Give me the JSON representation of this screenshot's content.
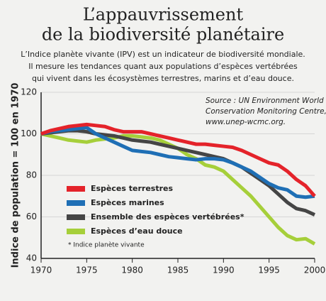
{
  "chart_data": {
    "type": "line",
    "title": [
      "L’appauvrissement",
      "de la biodiversité planétaire"
    ],
    "subtitle": [
      "L’Indice planète vivante (IPV) est un indicateur de biodiversité mondiale.",
      "Il mesure les tendances quant aux populations d’espèces vertébrées",
      "qui vivent dans les écosystèmes terrestres, marins et d’eau douce."
    ],
    "source": [
      "Source : UN Environment World",
      "Conservation Monitoring Centre,",
      "www.unep-wcmc.org."
    ],
    "y_label": "Indice de population = 100 en 1970",
    "footnote": "* Indice planète vivante",
    "x": [
      1970,
      1971,
      1972,
      1973,
      1974,
      1975,
      1976,
      1977,
      1978,
      1979,
      1980,
      1981,
      1982,
      1983,
      1984,
      1985,
      1986,
      1987,
      1988,
      1989,
      1990,
      1991,
      1992,
      1993,
      1994,
      1995,
      1996,
      1997,
      1998,
      1999,
      2000
    ],
    "series": [
      {
        "name": "Espèces terrestres",
        "color": "#e4232a",
        "values": [
          100,
          101.5,
          102.5,
          103.5,
          104,
          104.5,
          104,
          103.5,
          102,
          101,
          101,
          101,
          100,
          99,
          98,
          97,
          96,
          95,
          95,
          94.5,
          94,
          93.5,
          92,
          90,
          88,
          86,
          85,
          82,
          78,
          75,
          70
        ]
      },
      {
        "name": "Espèces marines",
        "color": "#1f6fb5",
        "values": [
          100,
          101,
          101.5,
          102,
          102.5,
          103,
          100,
          98,
          96,
          94,
          92,
          91.5,
          91,
          90,
          89,
          88.5,
          88,
          87.5,
          88,
          88,
          87.5,
          86,
          84,
          82,
          79,
          76,
          74,
          73,
          70,
          69.5,
          70
        ]
      },
      {
        "name": "Ensemble des espèces vertébrées*",
        "color": "#454545",
        "values": [
          100,
          100.5,
          101,
          101.5,
          101.5,
          101,
          100,
          99.5,
          99,
          98,
          97,
          96.5,
          96,
          95,
          94,
          93,
          92,
          91,
          90,
          89,
          88,
          86,
          84,
          81,
          78,
          75,
          71,
          67,
          64,
          63,
          61
        ]
      },
      {
        "name": "Espèces d’eau douce",
        "color": "#a6cf3a",
        "values": [
          100,
          99,
          98,
          97,
          96.5,
          96,
          97,
          97.5,
          98,
          99,
          99,
          98.5,
          98,
          97,
          95,
          93,
          90,
          88,
          85,
          84,
          82,
          78,
          74,
          70,
          65,
          60,
          55,
          51,
          49,
          49.5,
          47
        ]
      }
    ],
    "xlim": [
      1970,
      2000
    ],
    "xticks": [
      1970,
      1975,
      1980,
      1985,
      1990,
      1995,
      2000
    ],
    "ylim": [
      40,
      120
    ],
    "yticks": [
      40,
      60,
      80,
      100,
      120
    ],
    "grid": true
  }
}
